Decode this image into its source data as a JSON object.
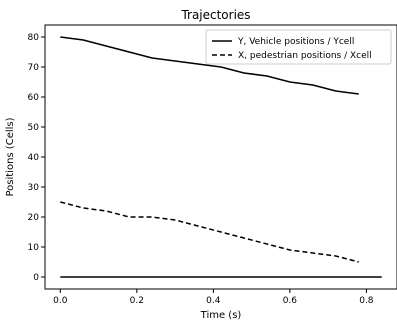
{
  "chart_data": {
    "type": "line",
    "title": "Trajectories",
    "xlabel": "Time (s)",
    "ylabel": "Positions (Cells)",
    "xlim": [
      -0.04,
      0.88
    ],
    "ylim": [
      -4,
      84
    ],
    "xticks": [
      0.0,
      0.2,
      0.4,
      0.6,
      0.8
    ],
    "xtick_labels": [
      "0.0",
      "0.2",
      "0.4",
      "0.6",
      "0.8"
    ],
    "yticks": [
      0,
      10,
      20,
      30,
      40,
      50,
      60,
      70,
      80
    ],
    "ytick_labels": [
      "0",
      "10",
      "20",
      "30",
      "40",
      "50",
      "60",
      "70",
      "80"
    ],
    "grid": false,
    "legend_position": "top-right",
    "series": [
      {
        "name": "Y, Vehicle positions / Ycell",
        "style": "solid",
        "color": "#000000",
        "x": [
          0.0,
          0.06,
          0.12,
          0.18,
          0.24,
          0.3,
          0.36,
          0.42,
          0.48,
          0.54,
          0.6,
          0.66,
          0.72,
          0.78
        ],
        "y": [
          80,
          79,
          77,
          75,
          73,
          72,
          71,
          70,
          68,
          67,
          65,
          64,
          62,
          61
        ]
      },
      {
        "name": "X, pedestrian positions / Xcell",
        "style": "dashed",
        "color": "#000000",
        "x": [
          0.0,
          0.06,
          0.12,
          0.18,
          0.24,
          0.3,
          0.36,
          0.42,
          0.48,
          0.54,
          0.6,
          0.66,
          0.72,
          0.78
        ],
        "y": [
          25,
          23,
          22,
          20,
          20,
          19,
          17,
          15,
          13,
          11,
          9,
          8,
          7,
          5
        ]
      },
      {
        "name": "",
        "style": "solid",
        "color": "#000000",
        "x": [
          0.0,
          0.84
        ],
        "y": [
          0,
          0
        ]
      }
    ]
  }
}
